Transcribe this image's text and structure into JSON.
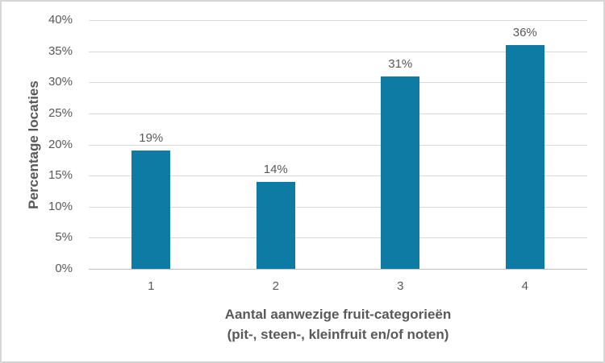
{
  "chart_data": {
    "type": "bar",
    "title": "",
    "categories": [
      "1",
      "2",
      "3",
      "4"
    ],
    "values": [
      19,
      14,
      31,
      36
    ],
    "bar_labels": [
      "19%",
      "14%",
      "31%",
      "36%"
    ],
    "ylabel": "Percentage locaties",
    "xlabel_line1": "Aantal aanwezige fruit-categorieën",
    "xlabel_line2": "(pit-, steen-, kleinfruit en/of noten)",
    "ylim": [
      0,
      40
    ],
    "ytick_step": 5,
    "ytick_labels": [
      "0%",
      "5%",
      "10%",
      "15%",
      "20%",
      "25%",
      "30%",
      "35%",
      "40%"
    ],
    "grid": "horizontal",
    "legend": "none",
    "colors": {
      "bar": "#0e7ba4",
      "text": "#595959",
      "gridline": "#d9d9d9",
      "axis_line": "#bfbfbf",
      "frame_border": "#d6d6d6"
    }
  }
}
